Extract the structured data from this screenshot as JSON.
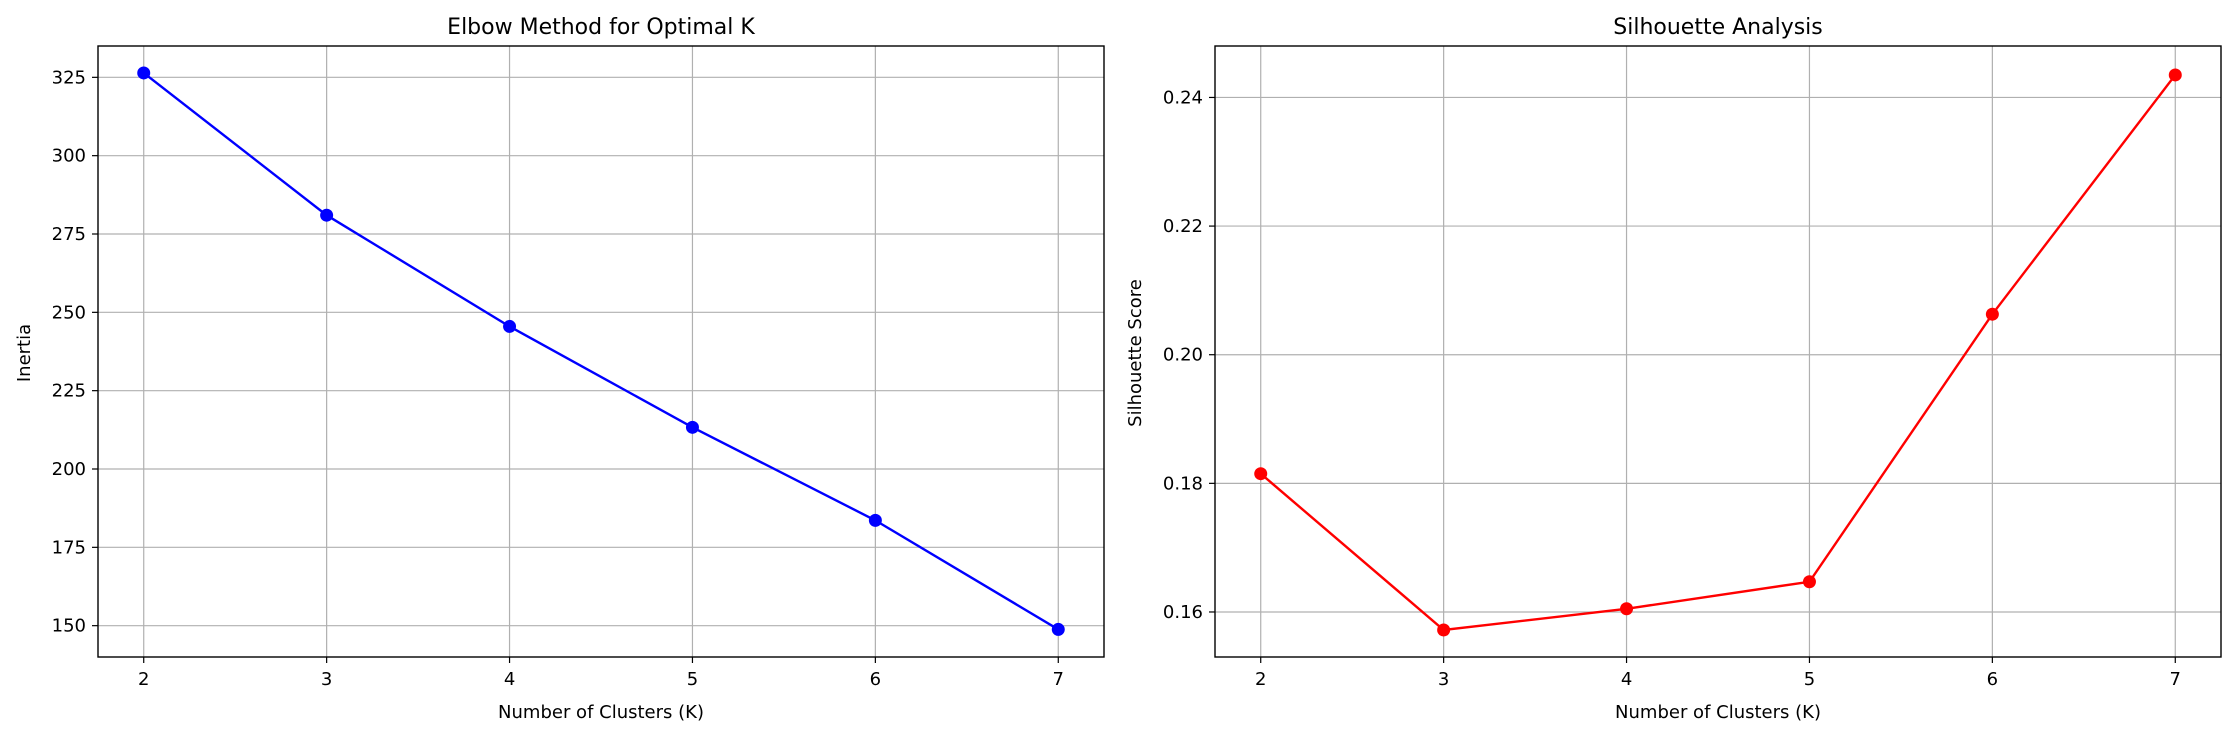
{
  "chart_data": [
    {
      "type": "line",
      "title": "Elbow Method for Optimal K",
      "xlabel": "Number of Clusters (K)",
      "ylabel": "Inertia",
      "x": [
        2,
        3,
        4,
        5,
        6,
        7
      ],
      "series": [
        {
          "values": [
            326.4,
            281.0,
            245.5,
            213.3,
            183.6,
            148.8
          ],
          "color": "#0000ff",
          "marker": "circle"
        }
      ],
      "xlim": [
        1.75,
        7.25
      ],
      "ylim": [
        140,
        335
      ],
      "xticks": [
        2,
        3,
        4,
        5,
        6,
        7
      ],
      "yticks": [
        150,
        175,
        200,
        225,
        250,
        275,
        300,
        325
      ],
      "ytick_decimals": 0,
      "grid": true
    },
    {
      "type": "line",
      "title": "Silhouette Analysis",
      "xlabel": "Number of Clusters (K)",
      "ylabel": "Silhouette Score",
      "x": [
        2,
        3,
        4,
        5,
        6,
        7
      ],
      "series": [
        {
          "values": [
            0.1815,
            0.1572,
            0.1605,
            0.1647,
            0.2063,
            0.2435
          ],
          "color": "#ff0000",
          "marker": "circle"
        }
      ],
      "xlim": [
        1.75,
        7.25
      ],
      "ylim": [
        0.153,
        0.248
      ],
      "xticks": [
        2,
        3,
        4,
        5,
        6,
        7
      ],
      "yticks": [
        0.16,
        0.18,
        0.2,
        0.22,
        0.24
      ],
      "ytick_decimals": 2,
      "grid": true
    }
  ]
}
